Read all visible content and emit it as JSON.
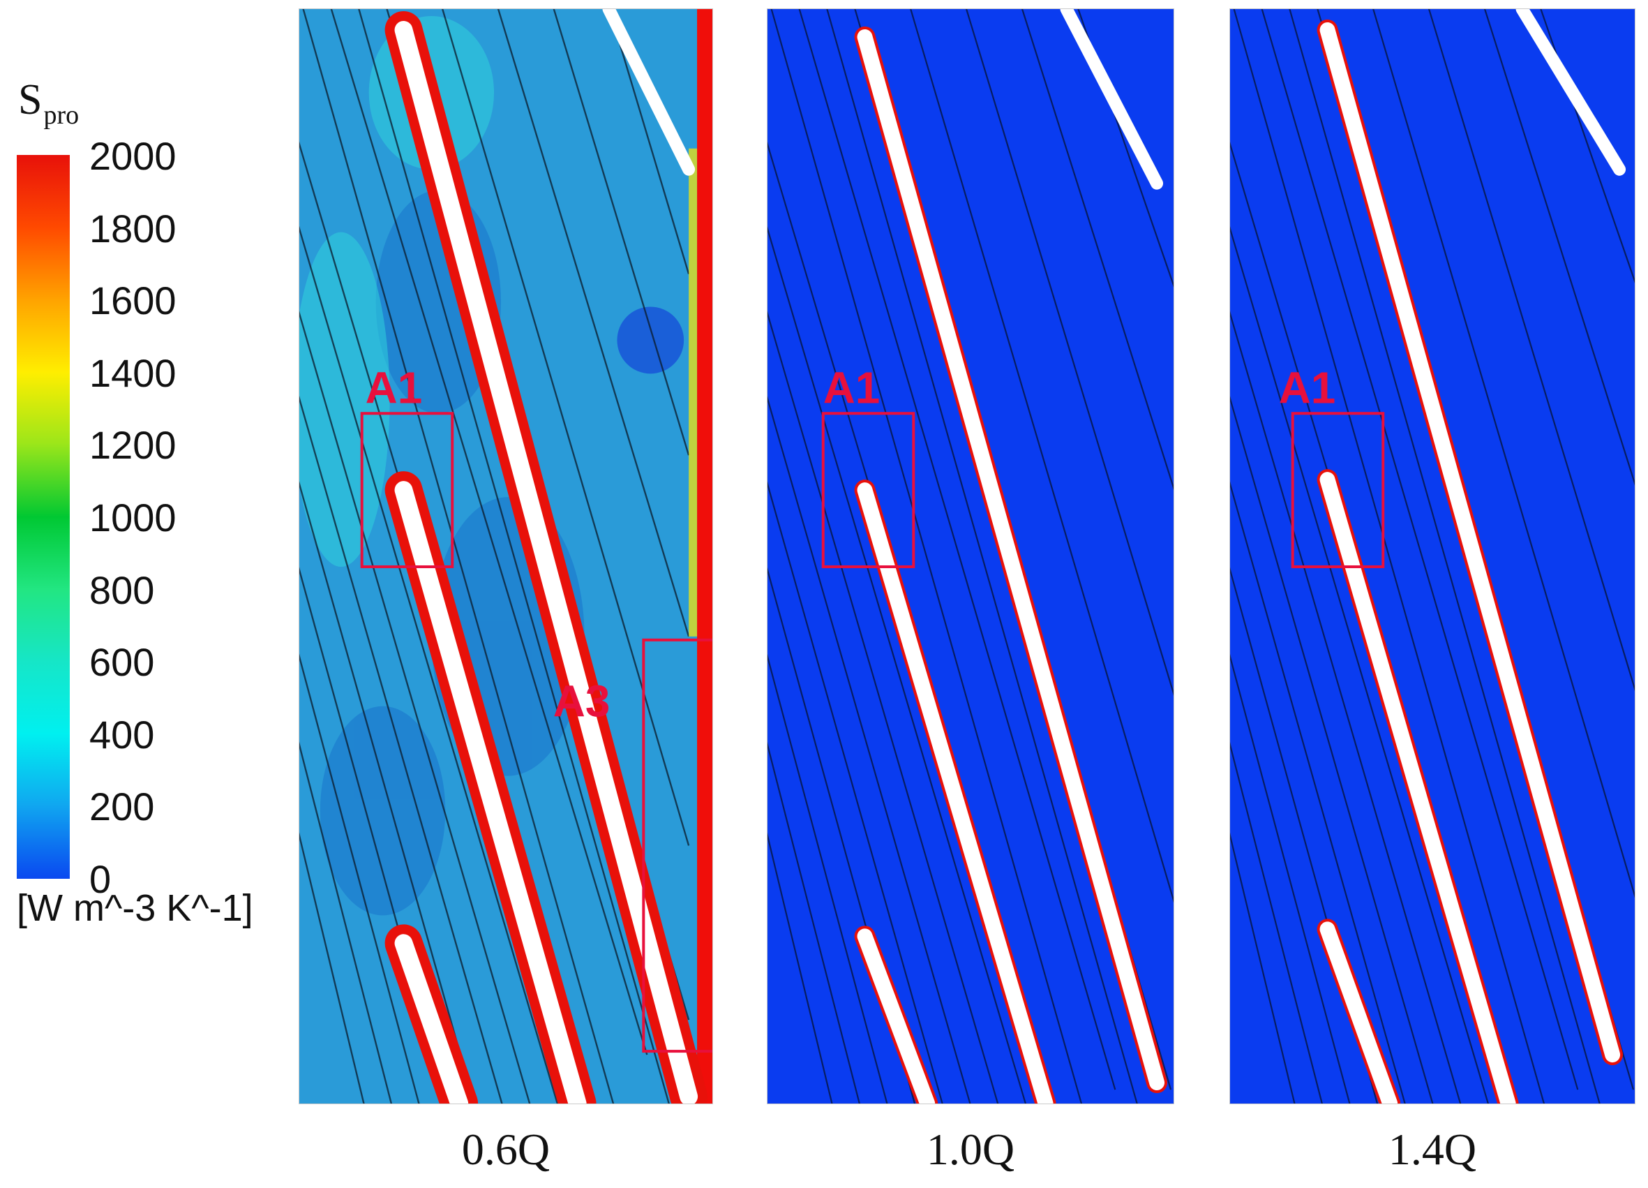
{
  "legend": {
    "variable": "S",
    "variable_subscript": "pro",
    "units": "[W m^-3 K^-1]",
    "ticks": [
      "2000",
      "1800",
      "1600",
      "1400",
      "1200",
      "1000",
      "800",
      "600",
      "400",
      "200",
      "0"
    ],
    "colors": [
      "#e8110a",
      "#ff4a00",
      "#ffa300",
      "#ffee00",
      "#9be61a",
      "#00c832",
      "#22e682",
      "#16e6c7",
      "#00f0f0",
      "#10a6f0",
      "#0a48f0"
    ]
  },
  "panels": [
    {
      "label": "0.6Q",
      "background": "#2a9bd8",
      "regions": [
        "A1",
        "A3"
      ]
    },
    {
      "label": "1.0Q",
      "background": "#0a3cf0",
      "regions": [
        "A1"
      ]
    },
    {
      "label": "1.4Q",
      "background": "#0a3cf0",
      "regions": [
        "A1"
      ]
    }
  ]
}
